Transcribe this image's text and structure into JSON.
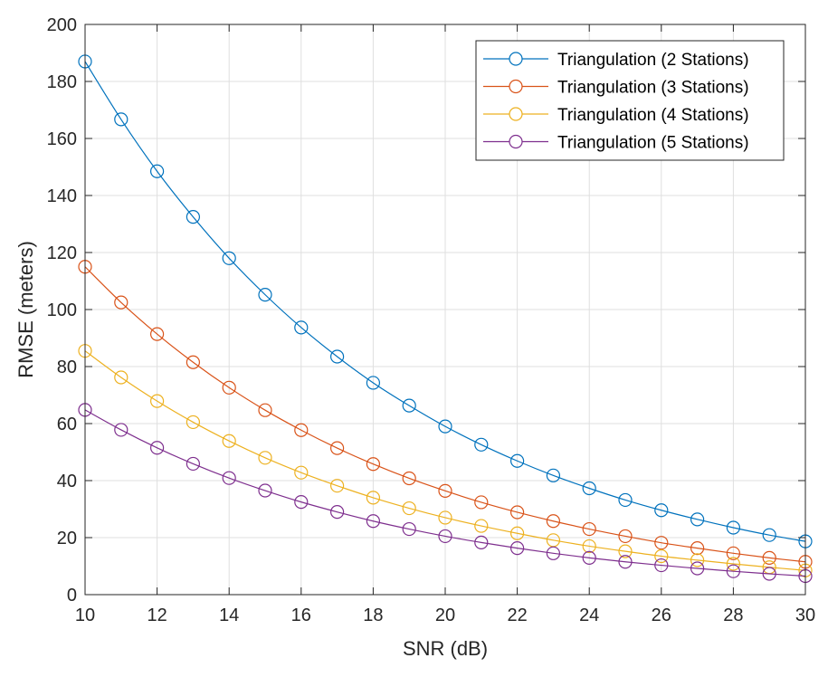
{
  "chart_data": {
    "type": "line",
    "title": "",
    "xlabel": "SNR (dB)",
    "ylabel": "RMSE (meters)",
    "xlim": [
      10,
      30
    ],
    "ylim": [
      0,
      200
    ],
    "xticks": [
      10,
      12,
      14,
      16,
      18,
      20,
      22,
      24,
      26,
      28,
      30
    ],
    "yticks": [
      0,
      20,
      40,
      60,
      80,
      100,
      120,
      140,
      160,
      180,
      200
    ],
    "grid": true,
    "legend_position": "top-right",
    "marker": "circle",
    "x": [
      10,
      11,
      12,
      13,
      14,
      15,
      16,
      17,
      18,
      19,
      20,
      21,
      22,
      23,
      24,
      25,
      26,
      27,
      28,
      29,
      30
    ],
    "series": [
      {
        "name": "Triangulation (2 Stations)",
        "color": "#0072BD",
        "values": [
          187,
          166.7,
          148.5,
          132.5,
          118,
          105.2,
          93.7,
          83.5,
          74.3,
          66.3,
          59,
          52.6,
          46.9,
          41.8,
          37.3,
          33.2,
          29.6,
          26.4,
          23.5,
          20.9,
          18.7
        ]
      },
      {
        "name": "Triangulation (3 Stations)",
        "color": "#D95319",
        "values": [
          115,
          102.5,
          91.4,
          81.5,
          72.6,
          64.7,
          57.7,
          51.4,
          45.8,
          40.8,
          36.4,
          32.4,
          28.9,
          25.8,
          23,
          20.5,
          18.2,
          16.3,
          14.5,
          12.9,
          11.5
        ]
      },
      {
        "name": "Triangulation (4 Stations)",
        "color": "#EDB120",
        "values": [
          85.5,
          76.2,
          67.9,
          60.5,
          53.9,
          48,
          42.8,
          38.2,
          34,
          30.3,
          27,
          24.1,
          21.5,
          19.1,
          17,
          15.2,
          13.5,
          12.1,
          10.8,
          9.6,
          8.5
        ]
      },
      {
        "name": "Triangulation (5 Stations)",
        "color": "#7E2F8E",
        "values": [
          64.8,
          57.8,
          51.5,
          45.9,
          40.9,
          36.5,
          32.5,
          29,
          25.8,
          23,
          20.5,
          18.3,
          16.3,
          14.5,
          12.9,
          11.5,
          10.3,
          9.2,
          8.2,
          7.3,
          6.5
        ]
      }
    ]
  }
}
